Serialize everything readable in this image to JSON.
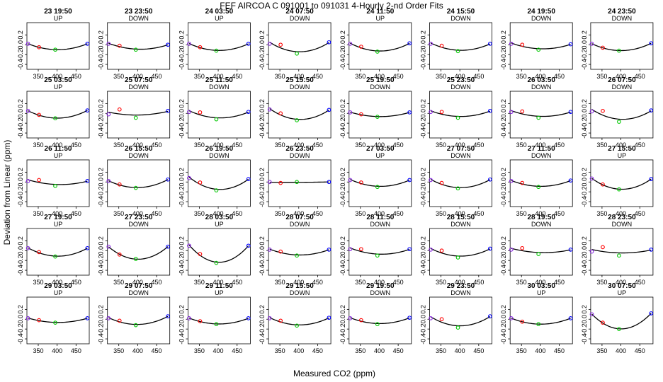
{
  "figure": {
    "title": "FEF   AIRCOA C   091001 to 091031   4-Hourly 2-nd Order Fits",
    "xlabel": "Measured CO2 (ppm)",
    "ylabel": "Deviation from Linear (ppm)"
  },
  "chart_data": {
    "type": "scatter",
    "layout": {
      "rows": 5,
      "cols": 8
    },
    "shared_axes": {
      "xlim": [
        320,
        485
      ],
      "ylim": [
        -0.5,
        0.45
      ],
      "xticks": [
        350,
        400,
        450
      ],
      "yticks": [
        -0.4,
        -0.2,
        0.0,
        0.2
      ]
    },
    "x_standards": [
      323,
      352,
      395,
      480
    ],
    "point_colors": [
      "#8a2be2",
      "#ff0000",
      "#00c800",
      "#0000ff"
    ],
    "panels": [
      {
        "label": "23 19:50",
        "mode": "UP",
        "y": [
          0.02,
          -0.05,
          -0.1,
          0.02
        ]
      },
      {
        "label": "23 23:50",
        "mode": "DOWN",
        "y": [
          0.02,
          -0.02,
          -0.1,
          0.0
        ]
      },
      {
        "label": "24 03:50",
        "mode": "UP",
        "y": [
          0.02,
          -0.05,
          -0.12,
          0.02
        ]
      },
      {
        "label": "24 07:50",
        "mode": "DOWN",
        "y": [
          0.02,
          0.0,
          -0.18,
          0.05
        ]
      },
      {
        "label": "24 11:50",
        "mode": "UP",
        "y": [
          0.02,
          -0.04,
          -0.14,
          0.03
        ]
      },
      {
        "label": "24 15:50",
        "mode": "DOWN",
        "y": [
          0.02,
          -0.02,
          -0.13,
          0.02
        ]
      },
      {
        "label": "24 19:50",
        "mode": "DOWN",
        "y": [
          0.02,
          0.0,
          -0.1,
          0.01
        ]
      },
      {
        "label": "24 23:50",
        "mode": "DOWN",
        "y": [
          0.02,
          -0.06,
          -0.12,
          0.03
        ]
      },
      {
        "label": "25 03:50",
        "mode": "UP",
        "y": [
          0.05,
          -0.03,
          -0.1,
          0.06
        ]
      },
      {
        "label": "25 07:50",
        "mode": "DOWN",
        "y": [
          -0.02,
          0.08,
          -0.09,
          0.05
        ]
      },
      {
        "label": "25 11:50",
        "mode": "DOWN",
        "y": [
          0.03,
          0.02,
          -0.12,
          0.03
        ]
      },
      {
        "label": "25 15:50",
        "mode": "DOWN",
        "y": [
          0.08,
          0.0,
          -0.14,
          0.07
        ]
      },
      {
        "label": "25 19:50",
        "mode": "DOWN",
        "y": [
          0.02,
          -0.02,
          -0.07,
          0.02
        ]
      },
      {
        "label": "25 23:50",
        "mode": "DOWN",
        "y": [
          0.03,
          0.03,
          -0.09,
          0.05
        ]
      },
      {
        "label": "26 03:50",
        "mode": "DOWN",
        "y": [
          0.03,
          0.04,
          -0.09,
          0.03
        ]
      },
      {
        "label": "26 07:50",
        "mode": "DOWN",
        "y": [
          0.04,
          0.05,
          -0.17,
          0.06
        ]
      },
      {
        "label": "26 11:50",
        "mode": "UP",
        "y": [
          0.02,
          0.04,
          -0.08,
          0.02
        ]
      },
      {
        "label": "26 15:50",
        "mode": "DOWN",
        "y": [
          0.02,
          -0.05,
          -0.12,
          0.05
        ]
      },
      {
        "label": "26 19:50",
        "mode": "DOWN",
        "y": [
          0.08,
          -0.01,
          -0.17,
          0.06
        ]
      },
      {
        "label": "26 23:50",
        "mode": "DOWN",
        "y": [
          0.0,
          -0.02,
          0.0,
          0.0
        ]
      },
      {
        "label": "27 03:50",
        "mode": "UP",
        "y": [
          0.04,
          -0.01,
          -0.1,
          0.04
        ]
      },
      {
        "label": "27 07:50",
        "mode": "DOWN",
        "y": [
          0.04,
          -0.02,
          -0.13,
          0.05
        ]
      },
      {
        "label": "27 11:50",
        "mode": "DOWN",
        "y": [
          0.02,
          -0.02,
          -0.1,
          0.03
        ]
      },
      {
        "label": "27 15:50",
        "mode": "UP",
        "y": [
          0.07,
          -0.05,
          -0.15,
          0.06
        ]
      },
      {
        "label": "27 19:50",
        "mode": "UP",
        "y": [
          0.05,
          -0.03,
          -0.12,
          0.05
        ]
      },
      {
        "label": "27 23:50",
        "mode": "DOWN",
        "y": [
          0.08,
          -0.08,
          -0.17,
          0.08
        ]
      },
      {
        "label": "28 03:50",
        "mode": "UP",
        "y": [
          0.1,
          -0.07,
          -0.25,
          0.1
        ]
      },
      {
        "label": "28 07:50",
        "mode": "DOWN",
        "y": [
          0.02,
          -0.02,
          -0.1,
          0.02
        ]
      },
      {
        "label": "28 11:50",
        "mode": "DOWN",
        "y": [
          0.03,
          0.03,
          -0.1,
          0.03
        ]
      },
      {
        "label": "28 15:50",
        "mode": "DOWN",
        "y": [
          0.02,
          0.0,
          -0.14,
          0.04
        ]
      },
      {
        "label": "28 19:50",
        "mode": "DOWN",
        "y": [
          0.02,
          0.05,
          -0.07,
          0.02
        ]
      },
      {
        "label": "28 23:50",
        "mode": "DOWN",
        "y": [
          -0.02,
          0.07,
          -0.1,
          0.02
        ]
      },
      {
        "label": "29 03:50",
        "mode": "UP",
        "y": [
          0.02,
          -0.02,
          -0.07,
          0.02
        ]
      },
      {
        "label": "29 07:50",
        "mode": "DOWN",
        "y": [
          0.02,
          -0.03,
          -0.12,
          0.06
        ]
      },
      {
        "label": "29 11:50",
        "mode": "UP",
        "y": [
          0.02,
          -0.04,
          -0.1,
          0.02
        ]
      },
      {
        "label": "29 15:50",
        "mode": "DOWN",
        "y": [
          0.02,
          -0.03,
          -0.13,
          0.03
        ]
      },
      {
        "label": "29 19:50",
        "mode": "DOWN",
        "y": [
          0.02,
          -0.02,
          -0.1,
          0.03
        ]
      },
      {
        "label": "29 23:50",
        "mode": "DOWN",
        "y": [
          0.02,
          0.0,
          -0.17,
          0.06
        ]
      },
      {
        "label": "30 03:50",
        "mode": "UP",
        "y": [
          0.02,
          -0.05,
          -0.1,
          0.02
        ]
      },
      {
        "label": "30 07:50",
        "mode": "UP",
        "y": [
          0.1,
          -0.07,
          -0.2,
          0.12
        ]
      }
    ]
  }
}
